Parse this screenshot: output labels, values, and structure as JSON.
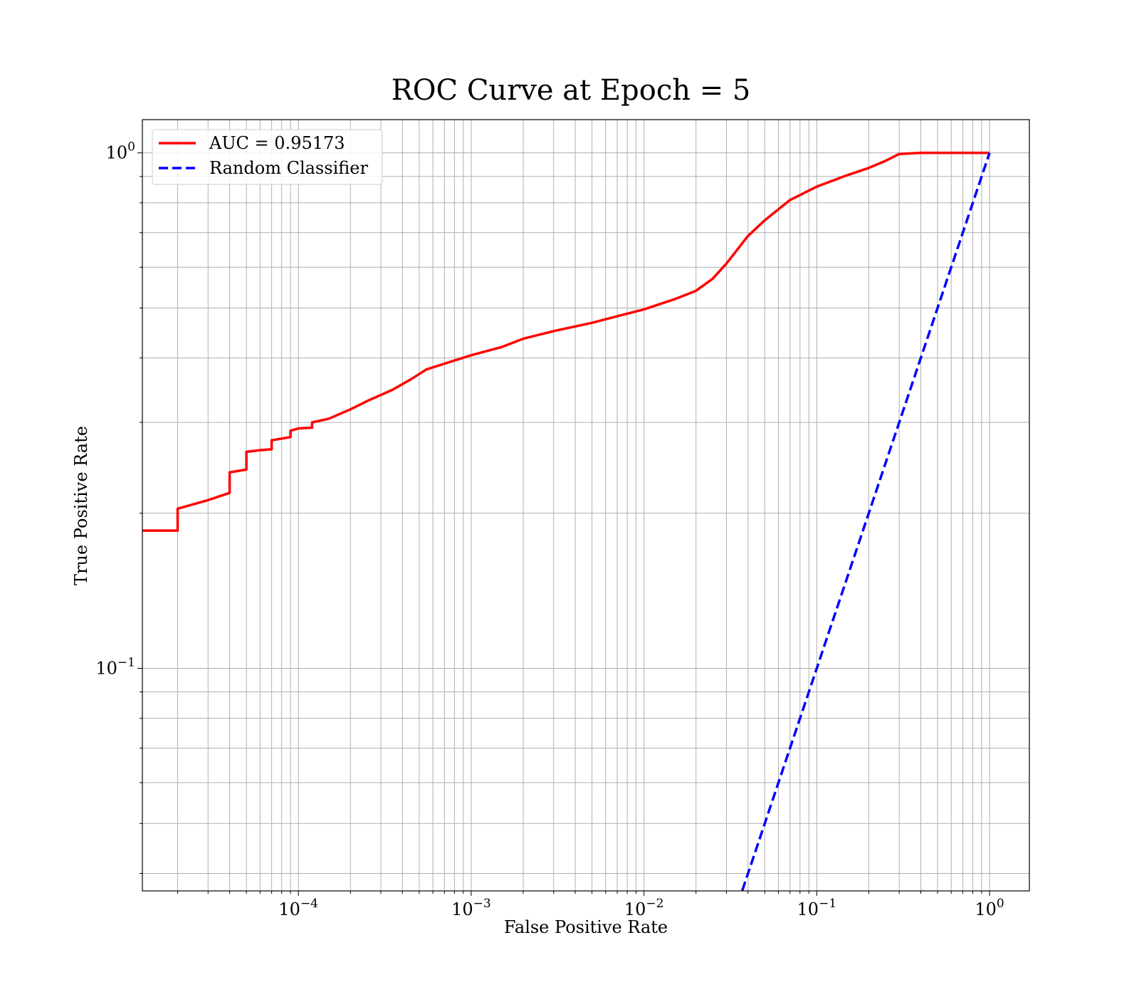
{
  "chart_data": {
    "type": "line",
    "title": "ROC Curve at Epoch = 5",
    "xlabel": "False Positive Rate",
    "ylabel": "True Positive Rate",
    "xscale": "log",
    "yscale": "log",
    "xlim": [
      1.25e-05,
      1.7
    ],
    "ylim": [
      0.037,
      1.16
    ],
    "grid": true,
    "grid_which": "both",
    "legend_position": "upper-left",
    "x_ticks": [
      {
        "value": 0.0001,
        "base": "10",
        "exp": "−4"
      },
      {
        "value": 0.001,
        "base": "10",
        "exp": "−3"
      },
      {
        "value": 0.01,
        "base": "10",
        "exp": "−2"
      },
      {
        "value": 0.1,
        "base": "10",
        "exp": "−1"
      },
      {
        "value": 1,
        "base": "10",
        "exp": "0"
      }
    ],
    "y_ticks": [
      {
        "value": 0.1,
        "base": "10",
        "exp": "−1"
      },
      {
        "value": 1,
        "base": "10",
        "exp": "0"
      }
    ],
    "series": [
      {
        "name": "AUC = 0.95173",
        "color": "#ff0000",
        "style": "solid",
        "x": [
          1.25e-05,
          2e-05,
          2e-05,
          3e-05,
          4e-05,
          4e-05,
          5e-05,
          5e-05,
          6e-05,
          7e-05,
          7e-05,
          8e-05,
          9e-05,
          9e-05,
          0.0001,
          0.00012,
          0.00012,
          0.00015,
          0.0002,
          0.00025,
          0.00035,
          0.00045,
          0.00055,
          0.0007,
          0.001,
          0.0015,
          0.002,
          0.003,
          0.005,
          0.007,
          0.01,
          0.015,
          0.02,
          0.025,
          0.03,
          0.04,
          0.05,
          0.07,
          0.1,
          0.15,
          0.2,
          0.25,
          0.3,
          0.4,
          1
        ],
        "y": [
          0.185,
          0.185,
          0.204,
          0.212,
          0.219,
          0.24,
          0.243,
          0.263,
          0.265,
          0.266,
          0.277,
          0.279,
          0.281,
          0.289,
          0.292,
          0.293,
          0.3,
          0.305,
          0.318,
          0.33,
          0.347,
          0.364,
          0.38,
          0.39,
          0.405,
          0.42,
          0.436,
          0.451,
          0.468,
          0.482,
          0.497,
          0.52,
          0.54,
          0.57,
          0.61,
          0.69,
          0.74,
          0.81,
          0.86,
          0.905,
          0.935,
          0.965,
          0.995,
          1.0,
          1.0
        ]
      },
      {
        "name": "Random Classifier",
        "color": "#0000ff",
        "style": "dashed",
        "x": [
          0.035,
          1
        ],
        "y": [
          0.035,
          1
        ]
      }
    ]
  }
}
